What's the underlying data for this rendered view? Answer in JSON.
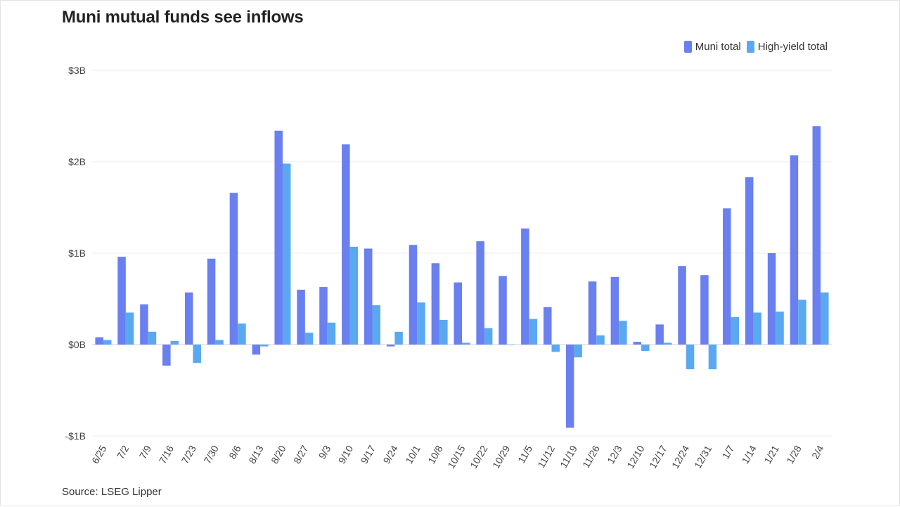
{
  "chart_data": {
    "type": "bar",
    "title": "Muni mutual funds see inflows",
    "source": "Source: LSEG Lipper",
    "categories": [
      "6/25",
      "7/2",
      "7/9",
      "7/16",
      "7/23",
      "7/30",
      "8/6",
      "8/13",
      "8/20",
      "8/27",
      "9/3",
      "9/10",
      "9/17",
      "9/24",
      "10/1",
      "10/8",
      "10/15",
      "10/22",
      "10/29",
      "11/5",
      "11/12",
      "11/19",
      "11/26",
      "12/3",
      "12/10",
      "12/17",
      "12/24",
      "12/31",
      "1/7",
      "1/14",
      "1/21",
      "1/28",
      "2/4"
    ],
    "series": [
      {
        "name": "Muni total",
        "color": "#6a7ff0",
        "values": [
          0.08,
          0.96,
          0.44,
          -0.23,
          0.57,
          0.94,
          1.66,
          -0.11,
          2.34,
          0.6,
          0.63,
          2.19,
          1.05,
          -0.02,
          1.09,
          0.89,
          0.68,
          1.13,
          0.75,
          1.27,
          0.41,
          -0.91,
          0.69,
          0.74,
          0.03,
          0.22,
          0.86,
          0.76,
          1.49,
          1.83,
          1.0,
          2.07,
          2.39
        ]
      },
      {
        "name": "High-yield total",
        "color": "#5aa9f0",
        "values": [
          0.05,
          0.35,
          0.14,
          0.04,
          -0.2,
          0.05,
          0.23,
          -0.02,
          1.98,
          0.13,
          0.24,
          1.07,
          0.43,
          0.14,
          0.46,
          0.27,
          0.02,
          0.18,
          0.0,
          0.28,
          -0.08,
          -0.14,
          0.1,
          0.26,
          -0.07,
          0.02,
          -0.27,
          -0.27,
          0.3,
          0.35,
          0.36,
          0.49,
          0.57
        ]
      }
    ],
    "y_unit": "$B",
    "ylim": [
      -1,
      3
    ],
    "yticks": [
      -1,
      0,
      1,
      2,
      3
    ],
    "ytick_labels": [
      "-$1B",
      "$0B",
      "$1B",
      "$2B",
      "$3B"
    ],
    "grid": true,
    "legend_position": "top-right"
  }
}
